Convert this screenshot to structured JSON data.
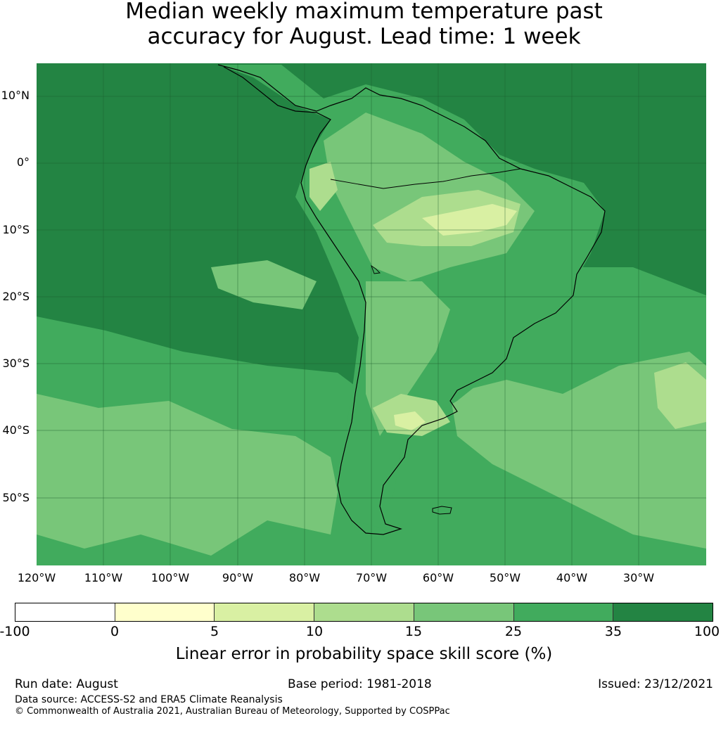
{
  "title_line1": "Median weekly maximum temperature past",
  "title_line2": "accuracy for August. Lead time: 1 week",
  "lat_labels": [
    "10°N",
    "0°",
    "10°S",
    "20°S",
    "30°S",
    "40°S",
    "50°S"
  ],
  "lon_labels": [
    "120°W",
    "110°W",
    "100°W",
    "90°W",
    "80°W",
    "70°W",
    "60°W",
    "50°W",
    "40°W",
    "30°W"
  ],
  "colorbar": {
    "ticks": [
      "-100",
      "0",
      "5",
      "10",
      "15",
      "25",
      "35",
      "100"
    ],
    "colors": [
      "#ffffff",
      "#ffffcc",
      "#d9f0a3",
      "#addd8e",
      "#78c679",
      "#41ab5d",
      "#238443"
    ],
    "title": "Linear error in probability space skill score (%)"
  },
  "map_colors": {
    "ocean_dark": "#238443",
    "mid": "#41ab5d",
    "light": "#78c679",
    "lighter": "#addd8e",
    "pale": "#d9f0a3",
    "palest": "#ffffcc",
    "coast": "#000000"
  },
  "footer": {
    "run_date": "Run date: August",
    "base_period": "Base period: 1981-2018",
    "issued": "Issued: 23/12/2021",
    "data_source": "Data source: ACCESS-S2 and ERA5 Climate Reanalysis",
    "copyright": "© Commonwealth of Australia 2021, Australian Bureau of Meteorology, Supported by COSPPac"
  }
}
